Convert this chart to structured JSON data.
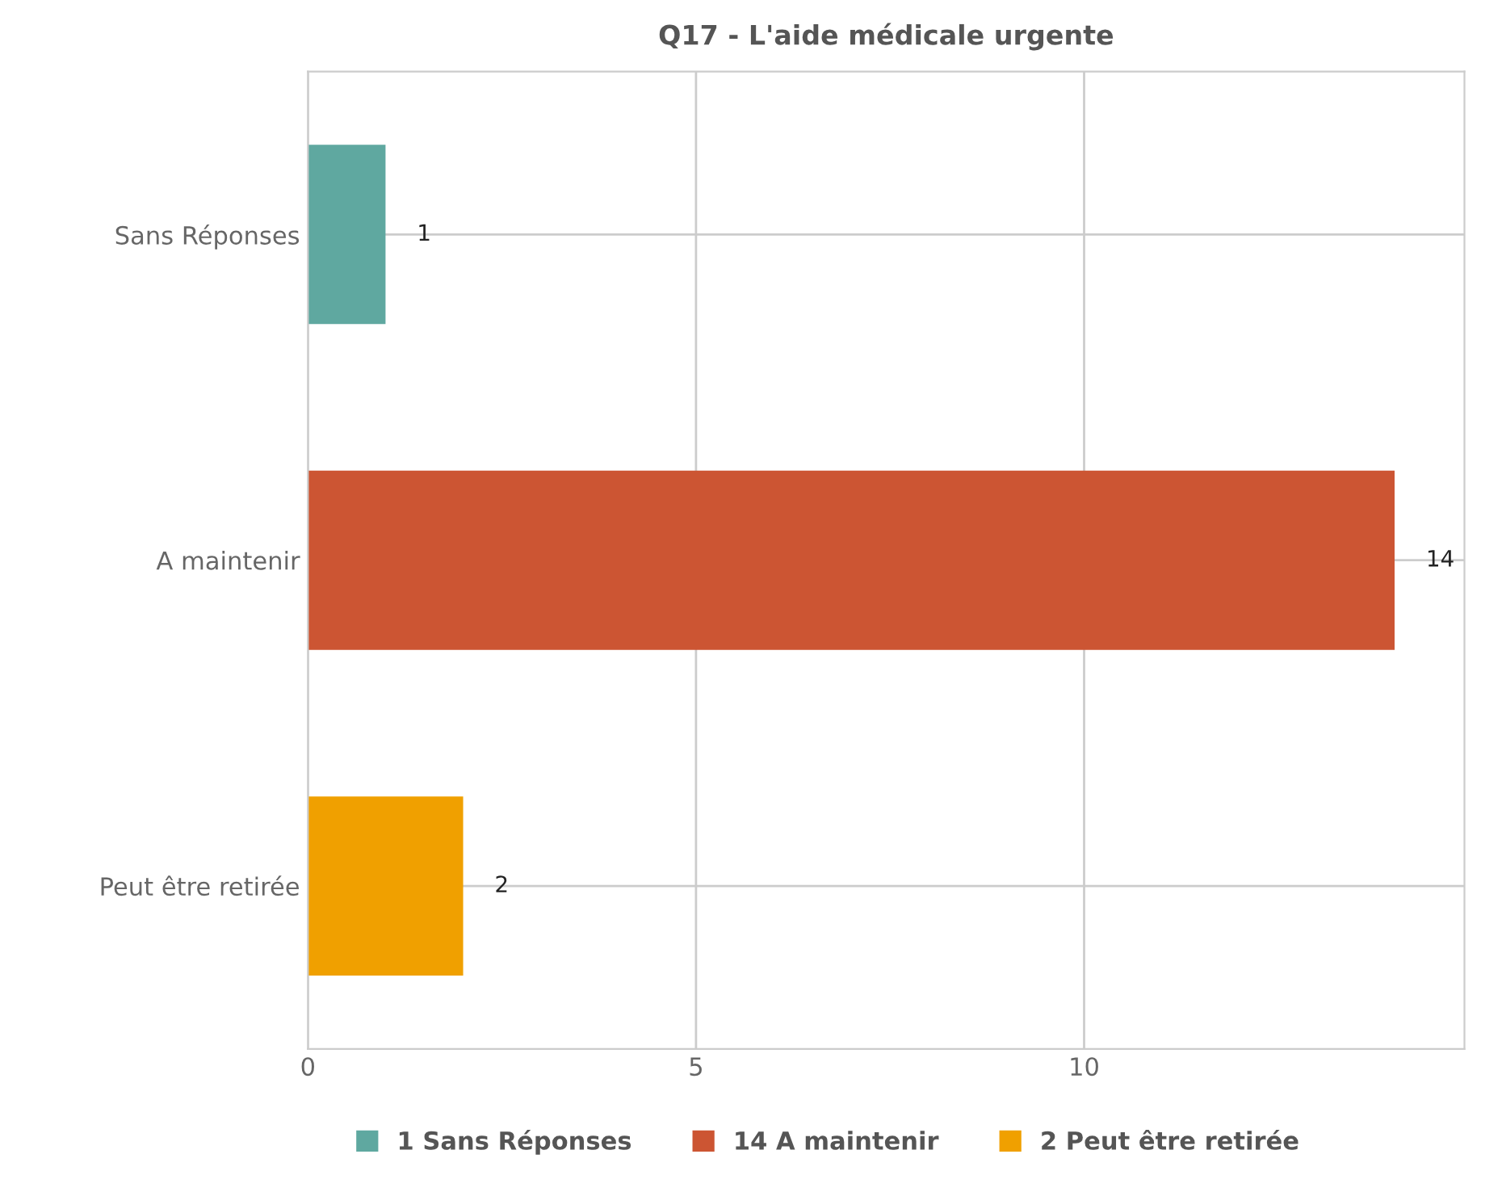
{
  "chart_data": {
    "type": "bar",
    "orientation": "horizontal",
    "title": "Q17 - L'aide médicale urgente",
    "categories": [
      "Sans Réponses",
      "A maintenir",
      "Peut être retirée"
    ],
    "series": [
      {
        "name": "1 Sans Réponses",
        "color": "#5fa8a0",
        "values": [
          1,
          null,
          null
        ]
      },
      {
        "name": "14 A maintenir",
        "color": "#cc5533",
        "values": [
          null,
          14,
          null
        ]
      },
      {
        "name": "2 Peut être retirée",
        "color": "#f0a000",
        "values": [
          null,
          null,
          2
        ]
      }
    ],
    "xlim": [
      0,
      14.9
    ],
    "xticks": [
      0,
      5,
      10
    ],
    "grid": true,
    "legend": "bottom",
    "data_labels": true
  }
}
